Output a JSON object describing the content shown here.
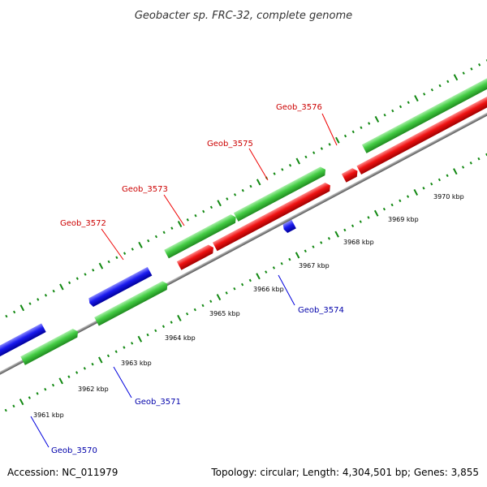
{
  "title": "Geobacter sp. FRC-32, complete genome",
  "accession": "Accession: NC_011979",
  "topology": "Topology: circular; Length: 4,304,501 bp; Genes: 3,855",
  "colors": {
    "forward_label": "#cc0000",
    "reverse_label": "#0000aa",
    "gene_green": "#44cc44",
    "cds_red": "#ee1111",
    "blue": "#1a1aee",
    "navy": "#000080",
    "tick": "#118811",
    "backbone": "#888888"
  },
  "kbp_labels": [
    "3961 kbp",
    "3962 kbp",
    "3963 kbp",
    "3964 kbp",
    "3965 kbp",
    "3966 kbp",
    "3967 kbp",
    "3968 kbp",
    "3969 kbp",
    "3970 kbp"
  ],
  "gene_labels": [
    {
      "text": "Geob_3576",
      "strand": "forward"
    },
    {
      "text": "Geob_3575",
      "strand": "forward"
    },
    {
      "text": "Geob_3573",
      "strand": "forward"
    },
    {
      "text": "Geob_3572",
      "strand": "forward"
    },
    {
      "text": "Geob_3574",
      "strand": "reverse"
    },
    {
      "text": "Geob_3571",
      "strand": "reverse"
    },
    {
      "text": "Geob_3570",
      "strand": "reverse"
    }
  ]
}
